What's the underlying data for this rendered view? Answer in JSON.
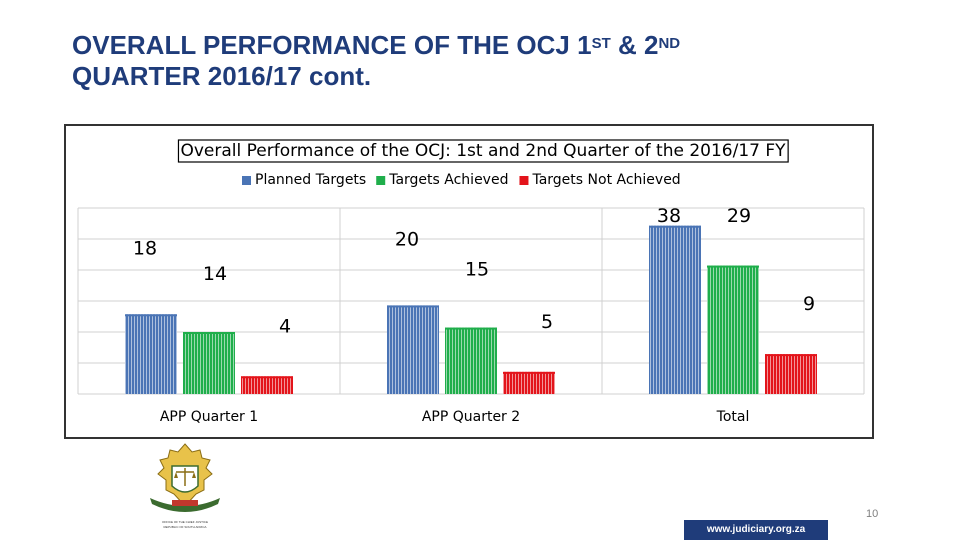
{
  "slide": {
    "title_part1": "OVERALL PERFORMANCE OF THE OCJ 1",
    "title_sup1": "ST",
    "title_part2": " & 2",
    "title_sup2": "ND",
    "title_part3": "QUARTER 2016/17 cont.",
    "page_number": "10",
    "url": "www.judiciary.org.za",
    "logo_icon": "coat-of-arms-icon",
    "logo_text_line1": "OFFICE OF THE CHIEF JUSTICE",
    "logo_text_line2": "REPUBLIC OF SOUTH AFRICA"
  },
  "chart_data": {
    "type": "bar",
    "title": "Overall Performance of the OCJ: 1st and 2nd Quarter of the 2016/17 FY",
    "categories": [
      "APP  Quarter 1",
      "APP  Quarter 2",
      "Total"
    ],
    "series": [
      {
        "name": "Planned Targets",
        "values": [
          18,
          20,
          38
        ],
        "color": "#4a74b5"
      },
      {
        "name": "Targets Achieved",
        "values": [
          14,
          15,
          29
        ],
        "color": "#1fae4b"
      },
      {
        "name": "Targets Not Achieved",
        "values": [
          4,
          5,
          9
        ],
        "color": "#e3141b"
      }
    ],
    "ylim": [
      0,
      42
    ],
    "legend": "top",
    "grid": true
  }
}
